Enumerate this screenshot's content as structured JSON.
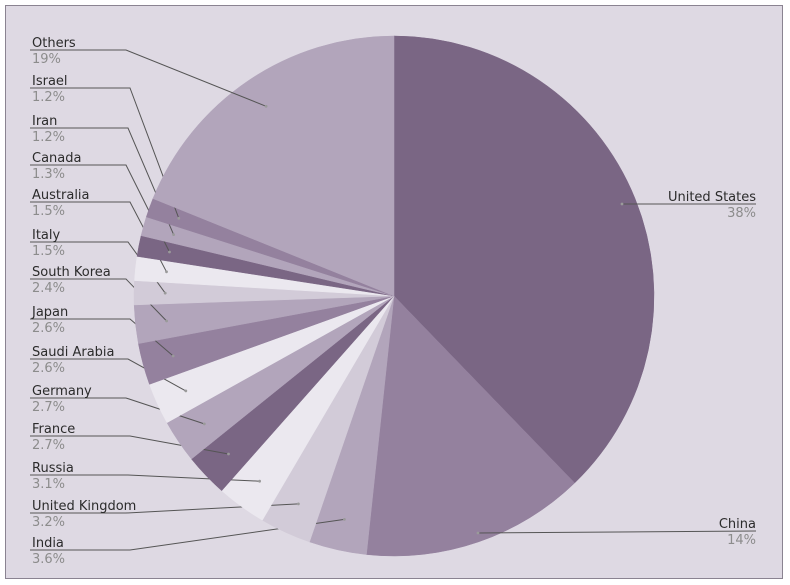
{
  "chart_data": {
    "type": "pie",
    "title": "",
    "slices": [
      {
        "label": "United States",
        "value_text": "38%",
        "value": 38.0,
        "color": "#7a6684"
      },
      {
        "label": "China",
        "value_text": "14%",
        "value": 14.0,
        "color": "#94819e"
      },
      {
        "label": "India",
        "value_text": "3.6%",
        "value": 3.6,
        "color": "#b2a5bb"
      },
      {
        "label": "United Kingdom",
        "value_text": "3.2%",
        "value": 3.2,
        "color": "#d2cbd8"
      },
      {
        "label": "Russia",
        "value_text": "3.1%",
        "value": 3.1,
        "color": "#ebe8ef"
      },
      {
        "label": "France",
        "value_text": "2.7%",
        "value": 2.7,
        "color": "#7a6684"
      },
      {
        "label": "Germany",
        "value_text": "2.7%",
        "value": 2.7,
        "color": "#b2a5bb"
      },
      {
        "label": "Saudi Arabia",
        "value_text": "2.6%",
        "value": 2.6,
        "color": "#ebe8ef"
      },
      {
        "label": "Japan",
        "value_text": "2.6%",
        "value": 2.6,
        "color": "#94819e"
      },
      {
        "label": "South Korea",
        "value_text": "2.4%",
        "value": 2.4,
        "color": "#b2a5bb"
      },
      {
        "label": "Italy",
        "value_text": "1.5%",
        "value": 1.5,
        "color": "#d2cbd8"
      },
      {
        "label": "Australia",
        "value_text": "1.5%",
        "value": 1.5,
        "color": "#ebe8ef"
      },
      {
        "label": "Canada",
        "value_text": "1.3%",
        "value": 1.3,
        "color": "#7a6684"
      },
      {
        "label": "Iran",
        "value_text": "1.2%",
        "value": 1.2,
        "color": "#b2a5bb"
      },
      {
        "label": "Israel",
        "value_text": "1.2%",
        "value": 1.2,
        "color": "#94819e"
      },
      {
        "label": "Others",
        "value_text": "19%",
        "value": 19.0,
        "color": "#b2a5bb"
      }
    ],
    "start_angle": "12 o'clock",
    "direction": "clockwise",
    "legend": "none (leader-line labels)"
  }
}
